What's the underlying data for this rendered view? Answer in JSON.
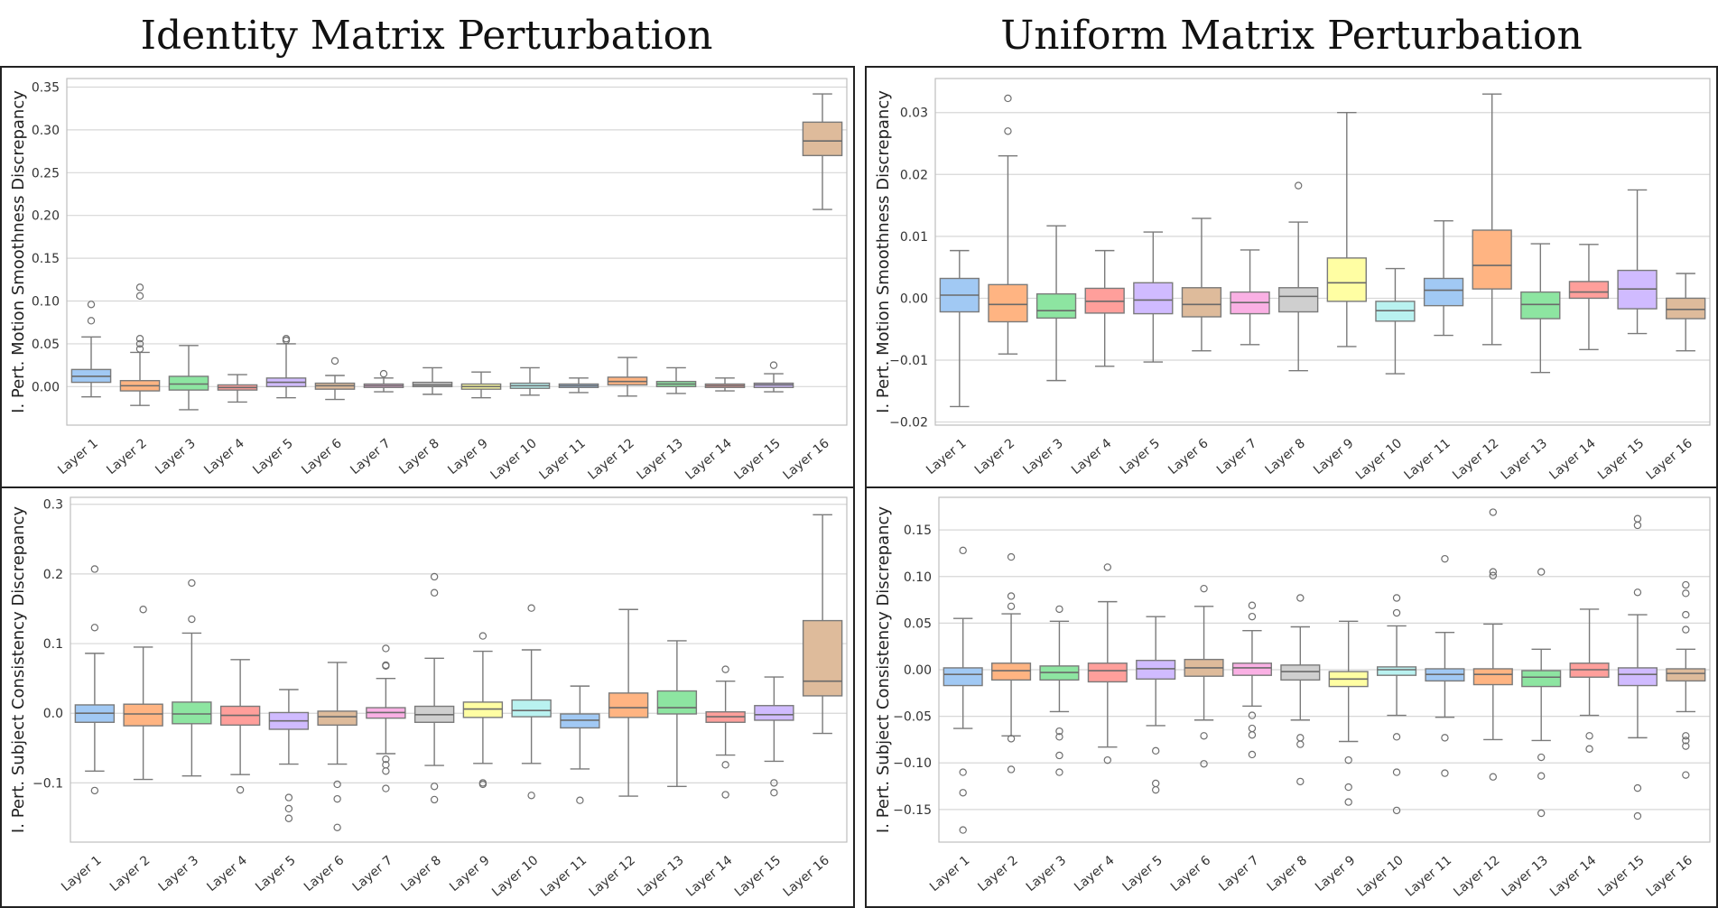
{
  "titles": {
    "left": "Identity Matrix Perturbation",
    "right": "Uniform Matrix Perturbation"
  },
  "palette": [
    "#a1c9f4",
    "#ffb482",
    "#8de5a1",
    "#ff9f9b",
    "#d0bbff",
    "#debb9b",
    "#fab0e4",
    "#cfcfcf",
    "#fffea3",
    "#b9f2f0",
    "#a1c9f4",
    "#ffb482",
    "#8de5a1",
    "#ff9f9b",
    "#d0bbff",
    "#debb9b"
  ],
  "chart_data": [
    {
      "type": "box",
      "title": "Identity Matrix Perturbation",
      "ylabel": "I. Pert. Motion Smoothness Discrepancy",
      "ylim": [
        -0.045,
        0.36
      ],
      "yticks": [
        0.0,
        0.05,
        0.1,
        0.15,
        0.2,
        0.25,
        0.3,
        0.35
      ],
      "ytick_labels": [
        "0.00",
        "0.05",
        "0.10",
        "0.15",
        "0.20",
        "0.25",
        "0.30",
        "0.35"
      ],
      "categories": [
        "Layer 1",
        "Layer 2",
        "Layer 3",
        "Layer 4",
        "Layer 5",
        "Layer 6",
        "Layer 7",
        "Layer 8",
        "Layer 9",
        "Layer 10",
        "Layer 11",
        "Layer 12",
        "Layer 13",
        "Layer 14",
        "Layer 15",
        "Layer 16"
      ],
      "boxes": [
        {
          "wl": -0.012,
          "q1": 0.005,
          "med": 0.012,
          "q3": 0.02,
          "wh": 0.058,
          "out": [
            0.077,
            0.096
          ]
        },
        {
          "wl": -0.022,
          "q1": -0.005,
          "med": 0.001,
          "q3": 0.007,
          "wh": 0.04,
          "out": [
            0.044,
            0.05,
            0.056,
            0.106,
            0.116
          ]
        },
        {
          "wl": -0.027,
          "q1": -0.004,
          "med": 0.003,
          "q3": 0.012,
          "wh": 0.048,
          "out": []
        },
        {
          "wl": -0.018,
          "q1": -0.004,
          "med": -0.001,
          "q3": 0.002,
          "wh": 0.014,
          "out": []
        },
        {
          "wl": -0.013,
          "q1": 0.0,
          "med": 0.005,
          "q3": 0.01,
          "wh": 0.05,
          "out": [
            0.054,
            0.056
          ]
        },
        {
          "wl": -0.015,
          "q1": -0.003,
          "med": 0.001,
          "q3": 0.004,
          "wh": 0.013,
          "out": [
            0.03
          ]
        },
        {
          "wl": -0.006,
          "q1": -0.001,
          "med": 0.001,
          "q3": 0.003,
          "wh": 0.01,
          "out": [
            0.015
          ]
        },
        {
          "wl": -0.009,
          "q1": 0.0,
          "med": 0.002,
          "q3": 0.005,
          "wh": 0.022,
          "out": []
        },
        {
          "wl": -0.013,
          "q1": -0.003,
          "med": 0.0,
          "q3": 0.003,
          "wh": 0.017,
          "out": []
        },
        {
          "wl": -0.01,
          "q1": -0.002,
          "med": 0.001,
          "q3": 0.004,
          "wh": 0.022,
          "out": []
        },
        {
          "wl": -0.007,
          "q1": -0.001,
          "med": 0.001,
          "q3": 0.003,
          "wh": 0.01,
          "out": []
        },
        {
          "wl": -0.011,
          "q1": 0.002,
          "med": 0.006,
          "q3": 0.011,
          "wh": 0.034,
          "out": []
        },
        {
          "wl": -0.008,
          "q1": 0.0,
          "med": 0.003,
          "q3": 0.006,
          "wh": 0.022,
          "out": []
        },
        {
          "wl": -0.005,
          "q1": -0.001,
          "med": 0.001,
          "q3": 0.003,
          "wh": 0.01,
          "out": []
        },
        {
          "wl": -0.006,
          "q1": -0.001,
          "med": 0.002,
          "q3": 0.004,
          "wh": 0.015,
          "out": [
            0.025
          ]
        },
        {
          "wl": 0.207,
          "q1": 0.27,
          "med": 0.287,
          "q3": 0.309,
          "wh": 0.342,
          "out": []
        }
      ]
    },
    {
      "type": "box",
      "title": "Uniform Matrix Perturbation",
      "ylabel": "I. Pert. Motion Smoothness Discrepancy",
      "ylim": [
        -0.0205,
        0.0355
      ],
      "yticks": [
        -0.02,
        -0.01,
        0.0,
        0.01,
        0.02,
        0.03
      ],
      "ytick_labels": [
        "−0.02",
        "−0.01",
        "0.00",
        "0.01",
        "0.02",
        "0.03"
      ],
      "categories": [
        "Layer 1",
        "Layer 2",
        "Layer 3",
        "Layer 4",
        "Layer 5",
        "Layer 6",
        "Layer 7",
        "Layer 8",
        "Layer 9",
        "Layer 10",
        "Layer 11",
        "Layer 12",
        "Layer 13",
        "Layer 14",
        "Layer 15",
        "Layer 16"
      ],
      "boxes": [
        {
          "wl": -0.0175,
          "q1": -0.0022,
          "med": 0.0005,
          "q3": 0.0032,
          "wh": 0.0077,
          "out": []
        },
        {
          "wl": -0.009,
          "q1": -0.0038,
          "med": -0.001,
          "q3": 0.0022,
          "wh": 0.023,
          "out": [
            0.027,
            0.0323
          ]
        },
        {
          "wl": -0.0133,
          "q1": -0.0032,
          "med": -0.002,
          "q3": 0.0007,
          "wh": 0.0117,
          "out": []
        },
        {
          "wl": -0.011,
          "q1": -0.0024,
          "med": -0.0005,
          "q3": 0.0016,
          "wh": 0.0077,
          "out": []
        },
        {
          "wl": -0.0103,
          "q1": -0.0025,
          "med": -0.0003,
          "q3": 0.0025,
          "wh": 0.0107,
          "out": []
        },
        {
          "wl": -0.0085,
          "q1": -0.003,
          "med": -0.001,
          "q3": 0.0017,
          "wh": 0.0129,
          "out": []
        },
        {
          "wl": -0.0075,
          "q1": -0.0025,
          "med": -0.0007,
          "q3": 0.001,
          "wh": 0.0078,
          "out": []
        },
        {
          "wl": -0.0117,
          "q1": -0.0022,
          "med": 0.0003,
          "q3": 0.0017,
          "wh": 0.0123,
          "out": [
            0.0182
          ]
        },
        {
          "wl": -0.0078,
          "q1": -0.0005,
          "med": 0.0025,
          "q3": 0.0065,
          "wh": 0.03,
          "out": []
        },
        {
          "wl": -0.0122,
          "q1": -0.0037,
          "med": -0.002,
          "q3": -0.0005,
          "wh": 0.0048,
          "out": []
        },
        {
          "wl": -0.006,
          "q1": -0.0012,
          "med": 0.0013,
          "q3": 0.0032,
          "wh": 0.0125,
          "out": []
        },
        {
          "wl": -0.0075,
          "q1": 0.0015,
          "med": 0.0053,
          "q3": 0.011,
          "wh": 0.033,
          "out": []
        },
        {
          "wl": -0.012,
          "q1": -0.0033,
          "med": -0.001,
          "q3": 0.001,
          "wh": 0.0088,
          "out": []
        },
        {
          "wl": -0.0083,
          "q1": 0.0,
          "med": 0.001,
          "q3": 0.0027,
          "wh": 0.0087,
          "out": []
        },
        {
          "wl": -0.0057,
          "q1": -0.0017,
          "med": 0.0015,
          "q3": 0.0045,
          "wh": 0.0175,
          "out": []
        },
        {
          "wl": -0.0085,
          "q1": -0.0033,
          "med": -0.0018,
          "q3": 0.0,
          "wh": 0.004,
          "out": []
        }
      ]
    },
    {
      "type": "box",
      "title": "Identity Matrix Perturbation",
      "ylabel": "I. Pert. Subject Consistency Discrepancy",
      "ylim": [
        -0.185,
        0.31
      ],
      "yticks": [
        -0.1,
        0.0,
        0.1,
        0.2,
        0.3
      ],
      "ytick_labels": [
        "−0.1",
        "0.0",
        "0.1",
        "0.2",
        "0.3"
      ],
      "categories": [
        "Layer 1",
        "Layer 2",
        "Layer 3",
        "Layer 4",
        "Layer 5",
        "Layer 6",
        "Layer 7",
        "Layer 8",
        "Layer 9",
        "Layer 10",
        "Layer 11",
        "Layer 12",
        "Layer 13",
        "Layer 14",
        "Layer 15",
        "Layer 16"
      ],
      "boxes": [
        {
          "wl": -0.083,
          "q1": -0.013,
          "med": 0.0,
          "q3": 0.012,
          "wh": 0.086,
          "out": [
            -0.111,
            0.123,
            0.207
          ]
        },
        {
          "wl": -0.095,
          "q1": -0.018,
          "med": -0.001,
          "q3": 0.013,
          "wh": 0.095,
          "out": [
            0.149
          ]
        },
        {
          "wl": -0.09,
          "q1": -0.015,
          "med": -0.001,
          "q3": 0.016,
          "wh": 0.115,
          "out": [
            0.135,
            0.187
          ]
        },
        {
          "wl": -0.088,
          "q1": -0.017,
          "med": -0.003,
          "q3": 0.01,
          "wh": 0.077,
          "out": [
            -0.11
          ]
        },
        {
          "wl": -0.073,
          "q1": -0.023,
          "med": -0.011,
          "q3": 0.001,
          "wh": 0.034,
          "out": [
            -0.121,
            -0.137,
            -0.151
          ]
        },
        {
          "wl": -0.073,
          "q1": -0.017,
          "med": -0.005,
          "q3": 0.003,
          "wh": 0.073,
          "out": [
            -0.102,
            -0.123,
            -0.164
          ]
        },
        {
          "wl": -0.058,
          "q1": -0.007,
          "med": 0.001,
          "q3": 0.008,
          "wh": 0.05,
          "out": [
            -0.066,
            -0.074,
            -0.083,
            -0.108,
            0.068,
            0.069,
            0.093
          ]
        },
        {
          "wl": -0.075,
          "q1": -0.013,
          "med": -0.002,
          "q3": 0.01,
          "wh": 0.079,
          "out": [
            -0.105,
            -0.124,
            0.173,
            0.196
          ]
        },
        {
          "wl": -0.072,
          "q1": -0.006,
          "med": 0.006,
          "q3": 0.016,
          "wh": 0.089,
          "out": [
            -0.1,
            -0.102,
            0.111
          ]
        },
        {
          "wl": -0.072,
          "q1": -0.005,
          "med": 0.004,
          "q3": 0.019,
          "wh": 0.091,
          "out": [
            -0.118,
            0.151
          ]
        },
        {
          "wl": -0.08,
          "q1": -0.021,
          "med": -0.01,
          "q3": -0.001,
          "wh": 0.039,
          "out": [
            -0.125
          ]
        },
        {
          "wl": -0.119,
          "q1": -0.006,
          "med": 0.008,
          "q3": 0.029,
          "wh": 0.149,
          "out": []
        },
        {
          "wl": -0.105,
          "q1": -0.001,
          "med": 0.008,
          "q3": 0.032,
          "wh": 0.104,
          "out": []
        },
        {
          "wl": -0.06,
          "q1": -0.013,
          "med": -0.005,
          "q3": 0.002,
          "wh": 0.046,
          "out": [
            -0.074,
            -0.117,
            0.063
          ]
        },
        {
          "wl": -0.069,
          "q1": -0.01,
          "med": -0.002,
          "q3": 0.011,
          "wh": 0.052,
          "out": [
            -0.1,
            -0.114
          ]
        },
        {
          "wl": -0.029,
          "q1": 0.025,
          "med": 0.046,
          "q3": 0.133,
          "wh": 0.285,
          "out": []
        }
      ]
    },
    {
      "type": "box",
      "title": "Uniform Matrix Perturbation",
      "ylabel": "I. Pert. Subject Consistency Discrepancy",
      "ylim": [
        -0.185,
        0.185
      ],
      "yticks": [
        -0.15,
        -0.1,
        -0.05,
        0.0,
        0.05,
        0.1,
        0.15
      ],
      "ytick_labels": [
        "−0.15",
        "−0.10",
        "−0.05",
        "0.00",
        "0.05",
        "0.10",
        "0.15"
      ],
      "categories": [
        "Layer 1",
        "Layer 2",
        "Layer 3",
        "Layer 4",
        "Layer 5",
        "Layer 6",
        "Layer 7",
        "Layer 8",
        "Layer 9",
        "Layer 10",
        "Layer 11",
        "Layer 12",
        "Layer 13",
        "Layer 14",
        "Layer 15",
        "Layer 16"
      ],
      "boxes": [
        {
          "wl": -0.063,
          "q1": -0.017,
          "med": -0.005,
          "q3": 0.002,
          "wh": 0.055,
          "out": [
            -0.11,
            -0.132,
            -0.172,
            0.128
          ]
        },
        {
          "wl": -0.071,
          "q1": -0.011,
          "med": -0.001,
          "q3": 0.007,
          "wh": 0.06,
          "out": [
            -0.074,
            -0.107,
            0.068,
            0.079,
            0.121
          ]
        },
        {
          "wl": -0.045,
          "q1": -0.011,
          "med": -0.003,
          "q3": 0.004,
          "wh": 0.052,
          "out": [
            -0.066,
            -0.072,
            -0.092,
            -0.11,
            0.065
          ]
        },
        {
          "wl": -0.083,
          "q1": -0.013,
          "med": -0.001,
          "q3": 0.007,
          "wh": 0.073,
          "out": [
            -0.097,
            0.11
          ]
        },
        {
          "wl": -0.06,
          "q1": -0.01,
          "med": 0.001,
          "q3": 0.01,
          "wh": 0.057,
          "out": [
            -0.087,
            -0.122,
            -0.129
          ]
        },
        {
          "wl": -0.054,
          "q1": -0.007,
          "med": 0.002,
          "q3": 0.011,
          "wh": 0.068,
          "out": [
            -0.071,
            -0.101,
            0.087
          ]
        },
        {
          "wl": -0.039,
          "q1": -0.006,
          "med": 0.002,
          "q3": 0.007,
          "wh": 0.042,
          "out": [
            -0.049,
            -0.063,
            -0.07,
            -0.091,
            0.057,
            0.069
          ]
        },
        {
          "wl": -0.054,
          "q1": -0.011,
          "med": -0.002,
          "q3": 0.005,
          "wh": 0.046,
          "out": [
            -0.073,
            -0.08,
            -0.12,
            0.077
          ]
        },
        {
          "wl": -0.077,
          "q1": -0.018,
          "med": -0.01,
          "q3": -0.002,
          "wh": 0.052,
          "out": [
            -0.097,
            -0.126,
            -0.142
          ]
        },
        {
          "wl": -0.049,
          "q1": -0.006,
          "med": 0.0,
          "q3": 0.003,
          "wh": 0.047,
          "out": [
            -0.072,
            -0.11,
            -0.151,
            0.061,
            0.077
          ]
        },
        {
          "wl": -0.051,
          "q1": -0.012,
          "med": -0.005,
          "q3": 0.001,
          "wh": 0.04,
          "out": [
            -0.073,
            -0.111,
            0.119
          ]
        },
        {
          "wl": -0.075,
          "q1": -0.016,
          "med": -0.005,
          "q3": 0.001,
          "wh": 0.049,
          "out": [
            -0.115,
            0.101,
            0.105,
            0.169
          ]
        },
        {
          "wl": -0.076,
          "q1": -0.018,
          "med": -0.008,
          "q3": -0.001,
          "wh": 0.022,
          "out": [
            -0.094,
            -0.114,
            -0.154,
            0.105
          ]
        },
        {
          "wl": -0.049,
          "q1": -0.008,
          "med": 0.0,
          "q3": 0.007,
          "wh": 0.065,
          "out": [
            -0.071,
            -0.085
          ]
        },
        {
          "wl": -0.073,
          "q1": -0.017,
          "med": -0.005,
          "q3": 0.002,
          "wh": 0.059,
          "out": [
            -0.127,
            -0.157,
            0.083,
            0.155,
            0.162
          ]
        },
        {
          "wl": -0.045,
          "q1": -0.012,
          "med": -0.004,
          "q3": 0.001,
          "wh": 0.022,
          "out": [
            -0.071,
            -0.076,
            -0.082,
            -0.113,
            0.043,
            0.059,
            0.082,
            0.091
          ]
        }
      ]
    }
  ]
}
